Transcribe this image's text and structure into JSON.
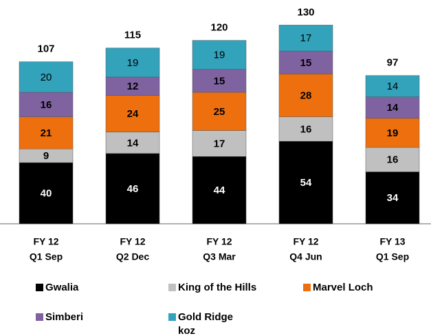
{
  "chart_data": {
    "type": "stacked-bar",
    "categories": [
      [
        "FY 12",
        "Q1 Sep"
      ],
      [
        "FY 12",
        "Q2 Dec"
      ],
      [
        "FY 12",
        "Q3 Mar"
      ],
      [
        "FY 12",
        "Q4 Jun"
      ],
      [
        "FY 13",
        "Q1 Sep"
      ]
    ],
    "series": [
      {
        "name": "Gwalia",
        "color": "#000000",
        "values": [
          40,
          46,
          44,
          54,
          34
        ]
      },
      {
        "name": "King of the Hills",
        "color": "#c0c0c0",
        "values": [
          9,
          14,
          17,
          16,
          16
        ]
      },
      {
        "name": "Marvel Loch",
        "color": "#ee6f0e",
        "values": [
          21,
          24,
          25,
          28,
          19
        ]
      },
      {
        "name": "Simberi",
        "color": "#7f62a0",
        "values": [
          16,
          12,
          15,
          15,
          14
        ]
      },
      {
        "name": "Gold Ridge",
        "color": "#33a2bb",
        "values": [
          20,
          19,
          19,
          17,
          14
        ]
      }
    ],
    "totals": [
      107,
      115,
      120,
      130,
      97
    ],
    "unit": "koz"
  }
}
